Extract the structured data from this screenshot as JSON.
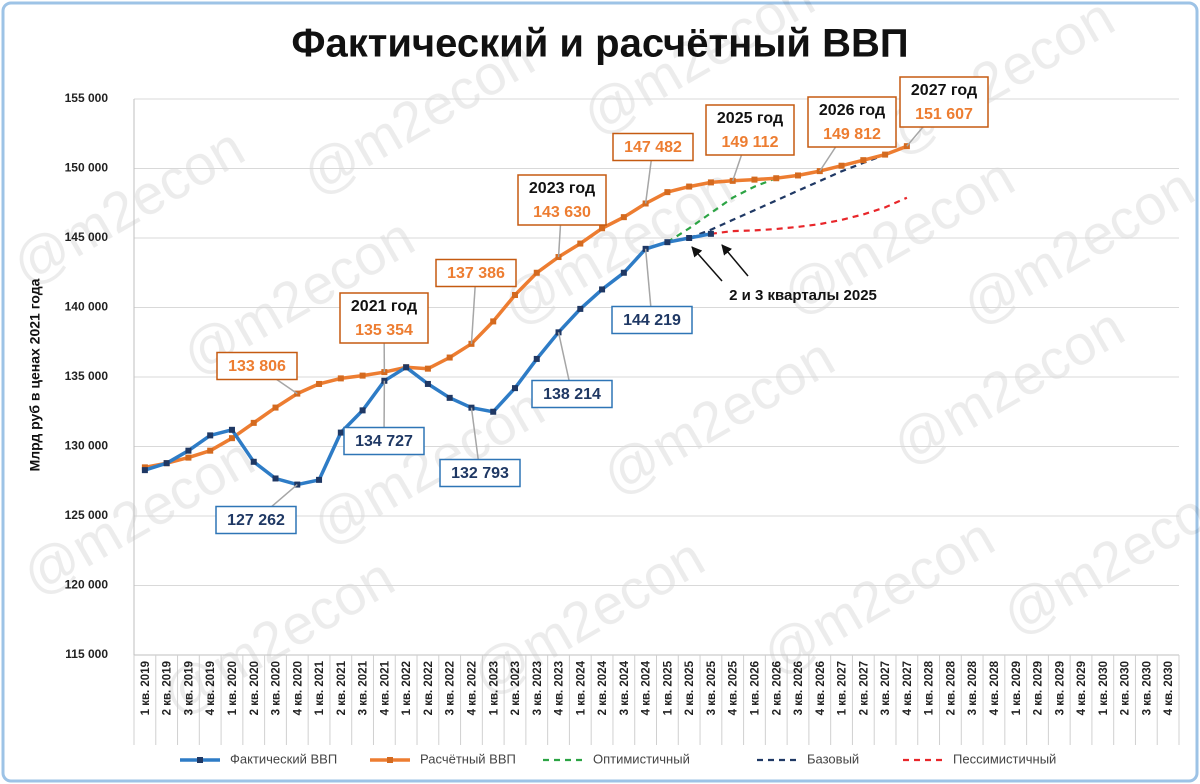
{
  "chart_data": {
    "type": "line",
    "title": "Фактический и расчётный ВВП",
    "y_label": "Млрд руб в ценах 2021 года",
    "watermark": "@m2econ",
    "annotation": "2 и 3 кварталы 2025",
    "grid": true,
    "legend": "bottom",
    "categories": [
      "1 кв. 2019",
      "2 кв. 2019",
      "3 кв. 2019",
      "4 кв. 2019",
      "1 кв. 2020",
      "2 кв. 2020",
      "3 кв. 2020",
      "4 кв. 2020",
      "1 кв. 2021",
      "2 кв. 2021",
      "3 кв. 2021",
      "4 кв. 2021",
      "1 кв. 2022",
      "2 кв. 2022",
      "3 кв. 2022",
      "4 кв. 2022",
      "1 кв. 2023",
      "2 кв. 2023",
      "3 кв. 2023",
      "4 кв. 2023",
      "1 кв. 2024",
      "2 кв. 2024",
      "3 кв. 2024",
      "4 кв. 2024",
      "1 кв. 2025",
      "2 кв. 2025",
      "3 кв. 2025",
      "4 кв. 2025",
      "1 кв. 2026",
      "2 кв. 2026",
      "3 кв. 2026",
      "4 кв. 2026",
      "1 кв. 2027",
      "2 кв. 2027",
      "3 кв. 2027",
      "4 кв. 2027",
      "1 кв. 2028",
      "2 кв. 2028",
      "3 кв. 2028",
      "4 кв. 2028",
      "1 кв. 2029",
      "2 кв. 2029",
      "3 кв. 2029",
      "4 кв. 2029",
      "1 кв. 2030",
      "2 кв. 2030",
      "3 кв. 2030",
      "4 кв. 2030"
    ],
    "ylim": [
      115000,
      155000
    ],
    "yticks": [
      {
        "value": 115000,
        "label": "115 000"
      },
      {
        "value": 120000,
        "label": "120 000"
      },
      {
        "value": 125000,
        "label": "125 000"
      },
      {
        "value": 130000,
        "label": "130 000"
      },
      {
        "value": 135000,
        "label": "135 000"
      },
      {
        "value": 140000,
        "label": "140 000"
      },
      {
        "value": 145000,
        "label": "145 000"
      },
      {
        "value": 150000,
        "label": "150 000"
      },
      {
        "value": 155000,
        "label": "155 000"
      }
    ],
    "series": [
      {
        "name": "Фактический ВВП",
        "color": "#2E7CC6",
        "marker_color": "#1F3864",
        "markers": true,
        "dash": false,
        "label_color": "#1F3864",
        "label_border": "#2E75B6",
        "values": [
          128300,
          128800,
          129700,
          130800,
          131200,
          128900,
          127700,
          127262,
          127600,
          131000,
          132600,
          134727,
          135700,
          134500,
          133500,
          132793,
          132500,
          134200,
          136300,
          138214,
          139900,
          141300,
          142500,
          144219,
          144700,
          145000,
          145300,
          null,
          null,
          null,
          null,
          null,
          null,
          null,
          null,
          null,
          null,
          null,
          null,
          null,
          null,
          null,
          null,
          null,
          null,
          null,
          null,
          null
        ],
        "value_labels": [
          null,
          null,
          null,
          null,
          null,
          null,
          null,
          "127 262",
          null,
          null,
          null,
          "134 727",
          null,
          null,
          null,
          "132 793",
          null,
          null,
          null,
          "138 214",
          null,
          null,
          null,
          "144 219",
          null,
          null,
          null,
          null,
          null,
          null,
          null,
          null,
          null,
          null,
          null,
          null,
          null,
          null,
          null,
          null,
          null,
          null,
          null,
          null,
          null,
          null,
          null,
          null
        ]
      },
      {
        "name": "Расчётный ВВП",
        "color": "#ED7D31",
        "marker_color": "#D46A1F",
        "markers": true,
        "dash": false,
        "label_color": "#ED7D31",
        "label_border": "#C55A11",
        "values": [
          128500,
          128800,
          129200,
          129700,
          130600,
          131700,
          132800,
          133806,
          134500,
          134900,
          135100,
          135354,
          135700,
          135600,
          136400,
          137386,
          139000,
          140900,
          142500,
          143630,
          144600,
          145700,
          146500,
          147482,
          148300,
          148700,
          149000,
          149112,
          149200,
          149300,
          149500,
          149812,
          150200,
          150600,
          151000,
          151607,
          null,
          null,
          null,
          null,
          null,
          null,
          null,
          null,
          null,
          null,
          null,
          null
        ],
        "value_labels": [
          null,
          null,
          null,
          null,
          null,
          null,
          null,
          "133 806",
          null,
          null,
          null,
          "135 354",
          null,
          null,
          null,
          "137 386",
          null,
          null,
          null,
          "143 630",
          null,
          null,
          null,
          "147 482",
          null,
          null,
          null,
          "149 112",
          null,
          null,
          null,
          "149 812",
          null,
          null,
          null,
          "151 607",
          null,
          null,
          null,
          null,
          null,
          null,
          null,
          null,
          null,
          null,
          null,
          null
        ],
        "label_headers": [
          null,
          null,
          null,
          null,
          null,
          null,
          null,
          null,
          null,
          null,
          null,
          "2021 год",
          null,
          null,
          null,
          null,
          null,
          null,
          null,
          "2023 год",
          null,
          null,
          null,
          null,
          null,
          null,
          null,
          "2025 год",
          null,
          null,
          null,
          "2026 год",
          null,
          null,
          null,
          "2027 год",
          null,
          null,
          null,
          null,
          null,
          null,
          null,
          null,
          null,
          null,
          null,
          null
        ]
      },
      {
        "name": "Оптимистичный",
        "color": "#2CA444",
        "markers": false,
        "dash": true,
        "values": [
          null,
          null,
          null,
          null,
          null,
          null,
          null,
          null,
          null,
          null,
          null,
          null,
          null,
          null,
          null,
          null,
          null,
          null,
          null,
          null,
          null,
          null,
          null,
          null,
          144700,
          145700,
          146800,
          147900,
          148700,
          149300,
          null,
          null,
          null,
          null,
          null,
          null,
          null,
          null,
          null,
          null,
          null,
          null,
          null,
          null,
          null,
          null,
          null,
          null
        ]
      },
      {
        "name": "Базовый",
        "color": "#1F3864",
        "markers": false,
        "dash": true,
        "values": [
          null,
          null,
          null,
          null,
          null,
          null,
          null,
          null,
          null,
          null,
          null,
          null,
          null,
          null,
          null,
          null,
          null,
          null,
          null,
          null,
          null,
          null,
          null,
          null,
          null,
          145000,
          145600,
          146300,
          147000,
          147700,
          148400,
          149100,
          149800,
          150400,
          151000,
          151607,
          null,
          null,
          null,
          null,
          null,
          null,
          null,
          null,
          null,
          null,
          null,
          null
        ]
      },
      {
        "name": "Пессимистичный",
        "color": "#E8262A",
        "markers": false,
        "dash": true,
        "values": [
          null,
          null,
          null,
          null,
          null,
          null,
          null,
          null,
          null,
          null,
          null,
          null,
          null,
          null,
          null,
          null,
          null,
          null,
          null,
          null,
          null,
          null,
          null,
          null,
          null,
          null,
          145300,
          145500,
          145550,
          145650,
          145800,
          146000,
          146300,
          146700,
          147200,
          147900,
          null,
          null,
          null,
          null,
          null,
          null,
          null,
          null,
          null,
          null,
          null,
          null
        ]
      }
    ]
  }
}
